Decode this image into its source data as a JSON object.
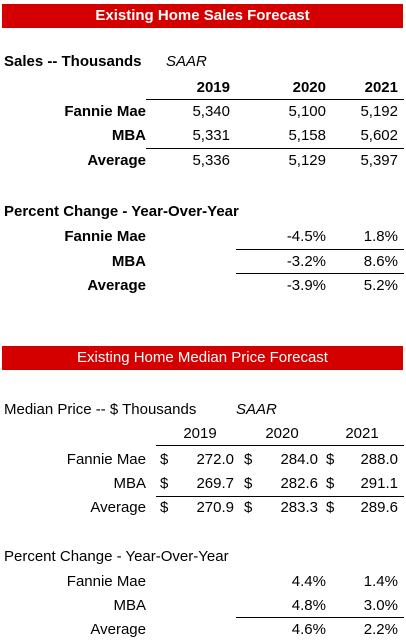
{
  "sales": {
    "banner": "Existing Home Sales Forecast",
    "heading": "Sales -- Thousands",
    "saar": "SAAR",
    "years": [
      "2019",
      "2020",
      "2021"
    ],
    "rows": [
      {
        "label": "Fannie Mae",
        "values": [
          "5,340",
          "5,100",
          "5,192"
        ]
      },
      {
        "label": "MBA",
        "values": [
          "5,331",
          "5,158",
          "5,602"
        ]
      },
      {
        "label": "Average",
        "values": [
          "5,336",
          "5,129",
          "5,397"
        ]
      }
    ],
    "pct_heading": "Percent Change - Year-Over-Year",
    "pct_rows": [
      {
        "label": "Fannie Mae",
        "values": [
          "-4.5%",
          "1.8%"
        ]
      },
      {
        "label": "MBA",
        "values": [
          "-3.2%",
          "8.6%"
        ]
      },
      {
        "label": "Average",
        "values": [
          "-3.9%",
          "5.2%"
        ]
      }
    ]
  },
  "price": {
    "banner": "Existing Home Median Price Forecast",
    "heading": "Median Price -- $ Thousands",
    "saar": "SAAR",
    "years": [
      "2019",
      "2020",
      "2021"
    ],
    "currency": "$",
    "rows": [
      {
        "label": "Fannie Mae",
        "values": [
          "272.0",
          "284.0",
          "288.0"
        ]
      },
      {
        "label": "MBA",
        "values": [
          "269.7",
          "282.6",
          "291.1"
        ]
      },
      {
        "label": "Average",
        "values": [
          "270.9",
          "283.3",
          "289.6"
        ]
      }
    ],
    "pct_heading": "Percent Change - Year-Over-Year",
    "pct_rows": [
      {
        "label": "Fannie Mae",
        "values": [
          "4.4%",
          "1.4%"
        ]
      },
      {
        "label": "MBA",
        "values": [
          "4.8%",
          "3.0%"
        ]
      },
      {
        "label": "Average",
        "values": [
          "4.6%",
          "2.2%"
        ]
      }
    ]
  }
}
